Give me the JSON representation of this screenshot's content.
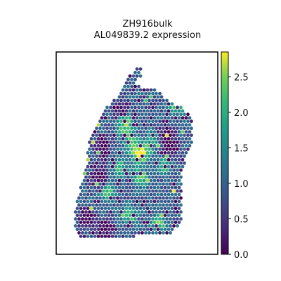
{
  "chart_data": {
    "type": "heatmap",
    "title_line1": "ZH916bulk",
    "title_line2": "AL049839.2 expression",
    "xlabel": "",
    "ylabel": "",
    "colormap": "viridis",
    "colorbar": {
      "range": [
        0.0,
        2.85
      ],
      "ticks": [
        0.0,
        0.5,
        1.0,
        1.5,
        2.0,
        2.5
      ],
      "tick_labels": [
        "0.0",
        "0.5",
        "1.0",
        "1.5",
        "2.0",
        "2.5"
      ]
    },
    "tissue_outline": [
      [
        4.5,
        9.1
      ],
      [
        4.4,
        8.5
      ],
      [
        4.1,
        8.2
      ],
      [
        4.5,
        7.9
      ],
      [
        5.0,
        8.0
      ],
      [
        5.5,
        7.7
      ],
      [
        6.0,
        7.3
      ],
      [
        6.8,
        7.0
      ],
      [
        7.4,
        6.3
      ],
      [
        7.4,
        5.6
      ],
      [
        7.3,
        5.0
      ],
      [
        7.0,
        4.4
      ],
      [
        6.7,
        3.6
      ],
      [
        6.8,
        1.3
      ],
      [
        6.2,
        0.7
      ],
      [
        3.5,
        0.5
      ],
      [
        1.1,
        0.4
      ],
      [
        0.6,
        0.9
      ],
      [
        0.7,
        2.0
      ],
      [
        0.9,
        2.8
      ],
      [
        1.3,
        4.2
      ],
      [
        1.5,
        5.4
      ],
      [
        2.0,
        6.2
      ],
      [
        2.5,
        7.0
      ],
      [
        3.2,
        7.6
      ],
      [
        3.7,
        8.6
      ]
    ],
    "hotspots": [
      [
        3.5,
        6.4
      ],
      [
        3.6,
        5.8
      ],
      [
        4.0,
        5.1
      ],
      [
        4.3,
        4.6
      ],
      [
        4.6,
        4.8
      ],
      [
        3.2,
        4.0
      ],
      [
        7.2,
        7.4
      ],
      [
        6.5,
        7.1
      ],
      [
        5.2,
        5.4
      ],
      [
        4.4,
        3.5
      ],
      [
        5.8,
        4.1
      ],
      [
        2.5,
        2.8
      ],
      [
        3.8,
        1.6
      ],
      [
        5.4,
        1.2
      ]
    ],
    "low_regions": [
      [
        1.3,
        1.5
      ],
      [
        2.4,
        1.0
      ],
      [
        6.1,
        5.0
      ],
      [
        5.7,
        5.6
      ],
      [
        2.2,
        4.9
      ],
      [
        3.3,
        6.9
      ],
      [
        6.4,
        8.2
      ],
      [
        2.0,
        3.5
      ]
    ]
  }
}
